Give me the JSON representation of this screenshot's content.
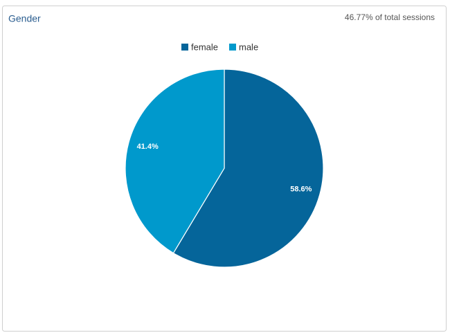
{
  "chart_data": {
    "type": "pie",
    "title": "Gender",
    "subtitle": "46.77% of total sessions",
    "categories": [
      "female",
      "male"
    ],
    "values": [
      58.6,
      41.4
    ],
    "value_labels": [
      "58.6%",
      "41.4%"
    ],
    "colors": [
      "#05659a",
      "#0099cc"
    ]
  }
}
